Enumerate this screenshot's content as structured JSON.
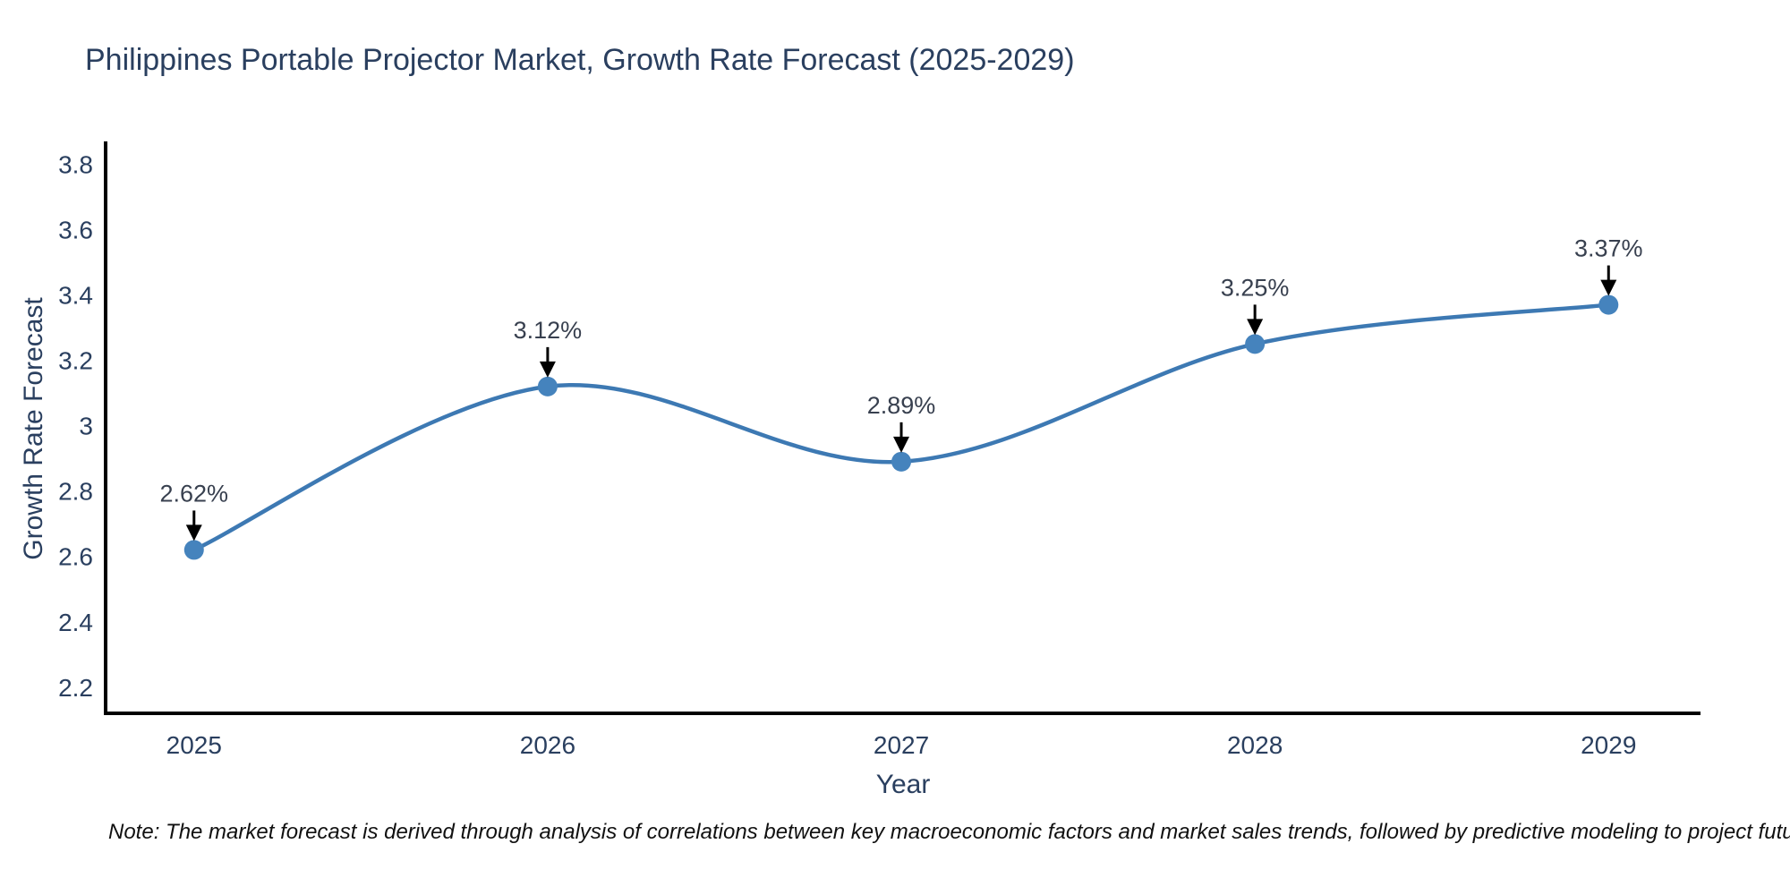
{
  "title": "Philippines Portable Projector Market, Growth Rate Forecast (2025-2029)",
  "note": "Note: The market forecast is derived through analysis of correlations between key macroeconomic factors and market sales trends, followed by predictive modeling to project future sales",
  "chart_data": {
    "type": "line",
    "line_shape": "spline",
    "title": "Philippines Portable Projector Market, Growth Rate Forecast (2025-2029)",
    "xlabel": "Year",
    "ylabel": "Growth Rate Forecast",
    "x": [
      2025,
      2026,
      2027,
      2028,
      2029
    ],
    "y": [
      2.62,
      3.12,
      2.89,
      3.25,
      3.37
    ],
    "point_labels": [
      "2.62%",
      "3.12%",
      "2.89%",
      "3.25%",
      "3.37%"
    ],
    "x_tick_labels": [
      "2025",
      "2026",
      "2027",
      "2028",
      "2029"
    ],
    "y_tick_values": [
      2.2,
      2.4,
      2.6,
      2.8,
      3,
      3.2,
      3.4,
      3.6,
      3.8
    ],
    "y_tick_labels": [
      "2.2",
      "2.4",
      "2.6",
      "2.8",
      "3",
      "3.2",
      "3.4",
      "3.6",
      "3.8"
    ],
    "xlim": [
      2024.75,
      2029.26
    ],
    "ylim": [
      2.12,
      3.87
    ],
    "grid": false,
    "legend": "none",
    "colors": {
      "line": "#3d79b3",
      "marker": "#4583bd",
      "axis": "#000000",
      "tick_text": "#2a3f5f",
      "annotation_text": "#38404f",
      "annotation_arrow": "#000000",
      "background": "#ffffff"
    }
  }
}
